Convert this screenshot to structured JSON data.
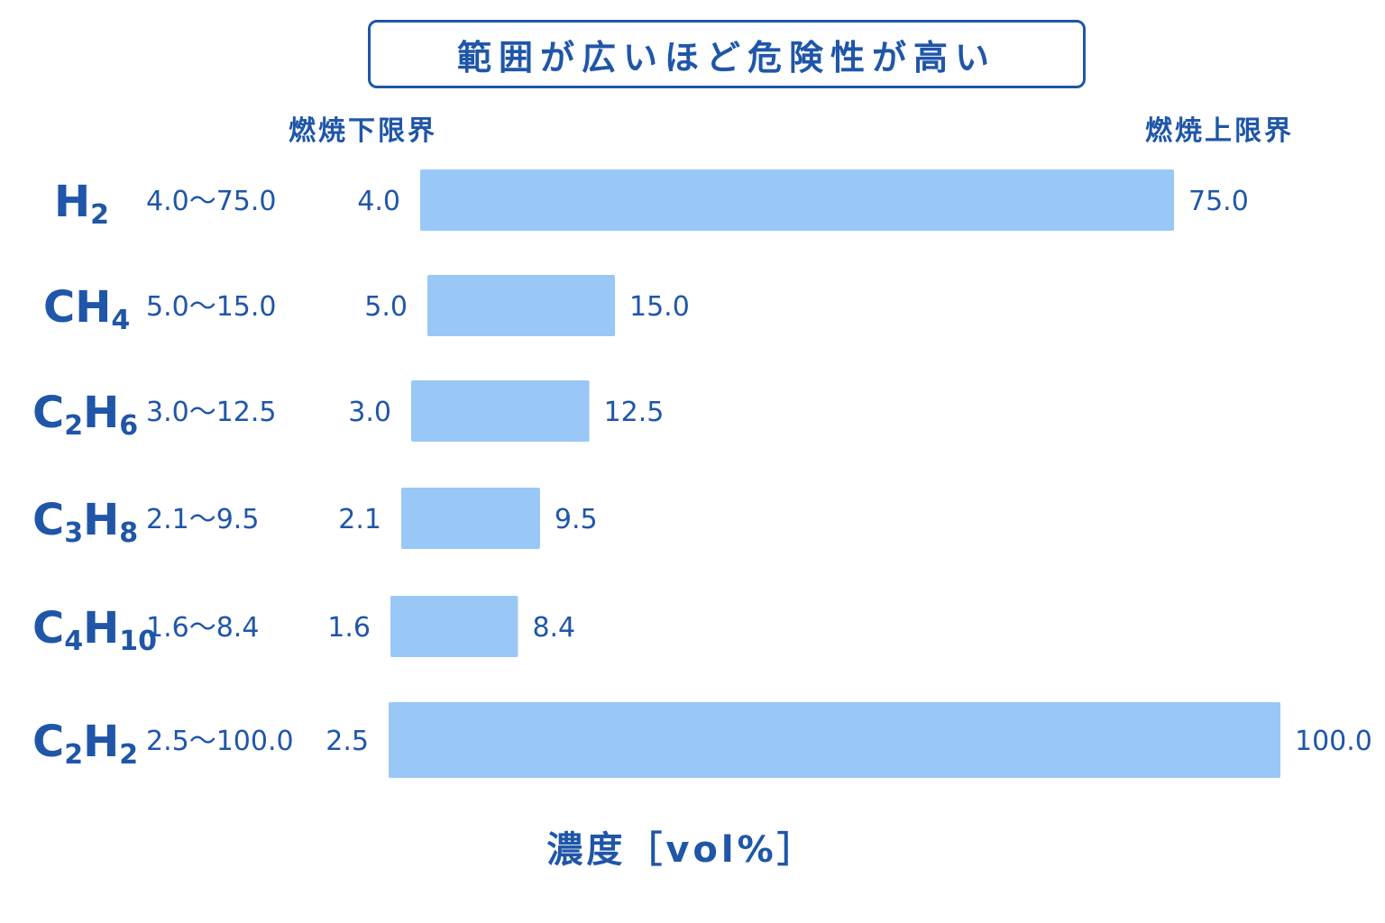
{
  "chart_data": {
    "type": "bar",
    "title": "範囲が広いほど危険性が高い",
    "lower_header": "燃焼下限界",
    "upper_header": "燃焼上限界",
    "xlabel": "濃度［vol%］",
    "bar_color": "#99c8f6",
    "text_color": "#1f56a8",
    "series": [
      {
        "name": "H2",
        "base": "H",
        "sub": "2",
        "base2": "",
        "sub2": "",
        "range_label": "4.0～75.0",
        "lower": 4.0,
        "upper": 75.0,
        "lower_label": "4.0",
        "upper_label": "75.0"
      },
      {
        "name": "CH4",
        "base": "CH",
        "sub": "4",
        "base2": "",
        "sub2": "",
        "range_label": "5.0～15.0",
        "lower": 5.0,
        "upper": 15.0,
        "lower_label": "5.0",
        "upper_label": "15.0"
      },
      {
        "name": "C2H6",
        "base": "C",
        "sub": "2",
        "base2": "H",
        "sub2": "6",
        "range_label": "3.0～12.5",
        "lower": 3.0,
        "upper": 12.5,
        "lower_label": "3.0",
        "upper_label": "12.5"
      },
      {
        "name": "C3H8",
        "base": "C",
        "sub": "3",
        "base2": "H",
        "sub2": "8",
        "range_label": "2.1～9.5",
        "lower": 2.1,
        "upper": 9.5,
        "lower_label": "2.1",
        "upper_label": "9.5"
      },
      {
        "name": "C4H10",
        "base": "C",
        "sub": "4",
        "base2": "H",
        "sub2": "10",
        "range_label": "1.6～8.4",
        "lower": 1.6,
        "upper": 8.4,
        "lower_label": "1.6",
        "upper_label": "8.4"
      },
      {
        "name": "C2H2",
        "base": "C",
        "sub": "2",
        "base2": "H",
        "sub2": "2",
        "range_label": "2.5～100.0",
        "lower": 2.5,
        "upper": 100.0,
        "lower_label": "2.5",
        "upper_label": "100.0"
      }
    ]
  }
}
